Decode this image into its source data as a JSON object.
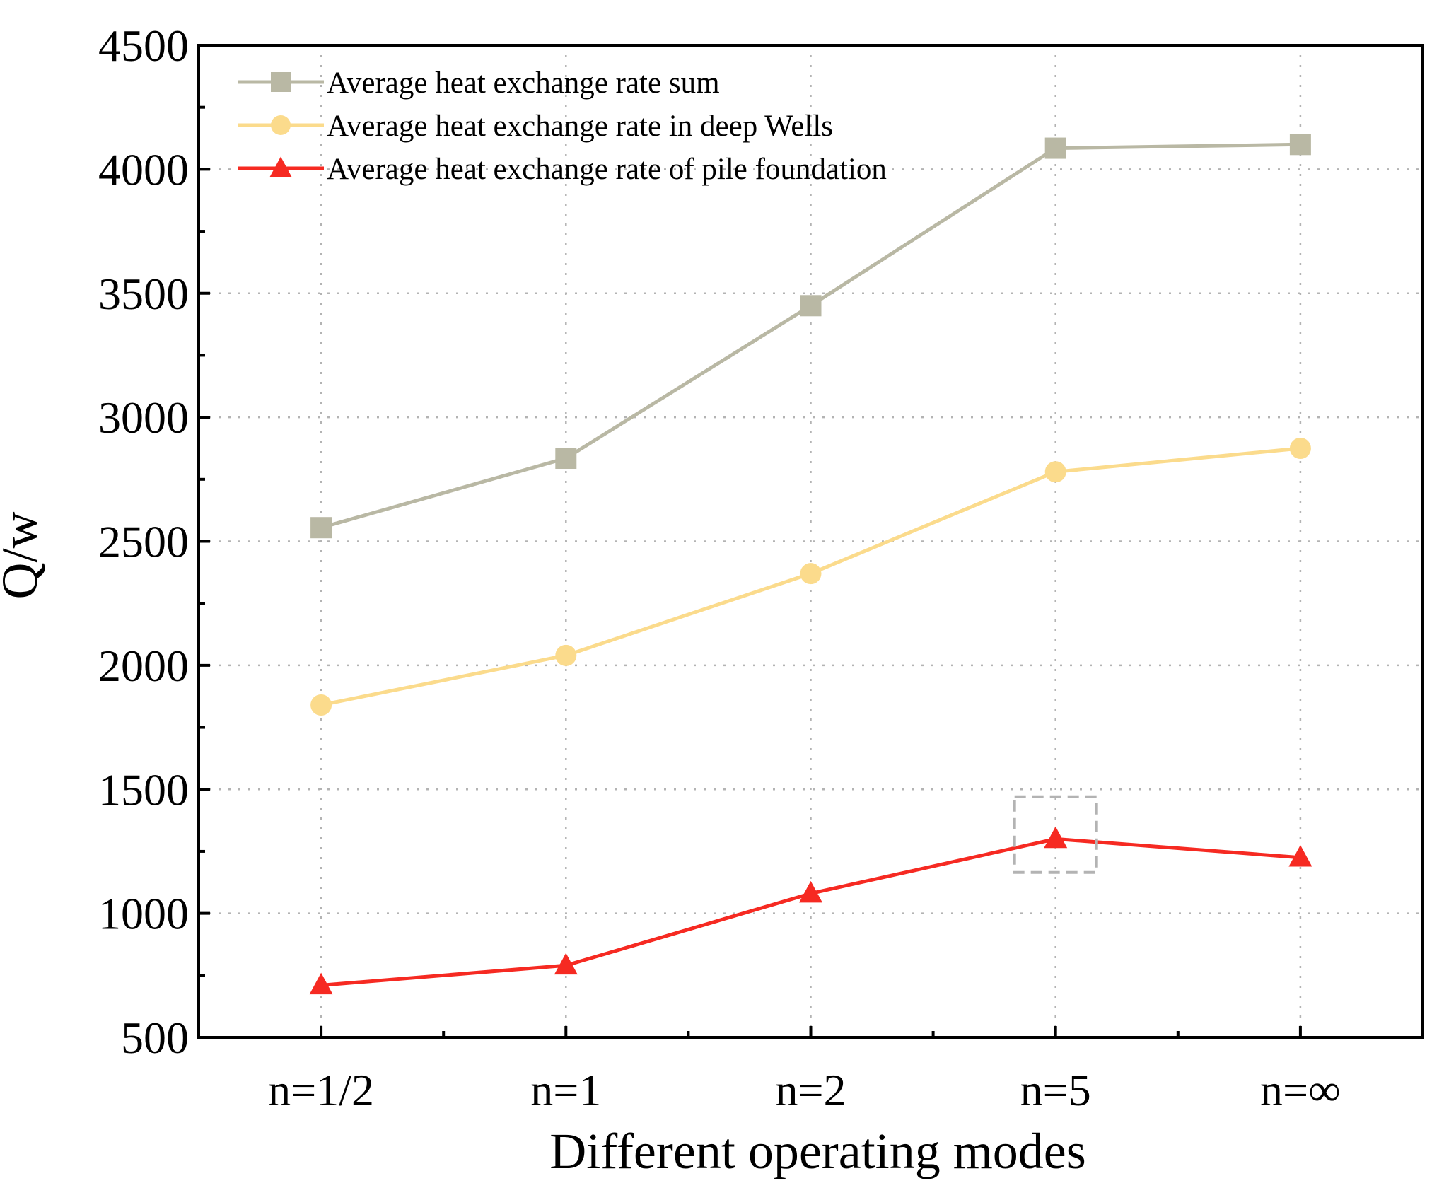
{
  "chart_data": {
    "type": "line",
    "title": "",
    "xlabel": "Different operating modes",
    "ylabel": "Q/w",
    "categories": [
      "n=1/2",
      "n=1",
      "n=2",
      "n=5",
      "n=∞"
    ],
    "ylim": [
      500,
      4500
    ],
    "yticks": [
      500,
      1000,
      1500,
      2000,
      2500,
      3000,
      3500,
      4000,
      4500
    ],
    "ytick_labels": [
      "500",
      "1000",
      "1500",
      "2000",
      "2500",
      "3000",
      "3500",
      "4000",
      "4500"
    ],
    "grid": true,
    "legend_position": "top-left",
    "series": [
      {
        "name": "Average heat exchange rate sum",
        "marker": "square",
        "color": "#b9b8a4",
        "values": [
          2555,
          2835,
          3450,
          4085,
          4100
        ]
      },
      {
        "name": "Average heat exchange rate in deep Wells",
        "marker": "circle",
        "color": "#fbdb8c",
        "values": [
          1840,
          2040,
          2370,
          2780,
          2875
        ]
      },
      {
        "name": "Average heat exchange rate of pile foundation",
        "marker": "triangle",
        "color": "#f62a22",
        "values": [
          710,
          790,
          1080,
          1300,
          1225
        ]
      }
    ],
    "annotations": [
      {
        "type": "dashed-box",
        "category": "n=5",
        "series": "Average heat exchange rate of pile foundation",
        "y_range": [
          1165,
          1470
        ],
        "color": "#b3b3b3"
      }
    ]
  }
}
